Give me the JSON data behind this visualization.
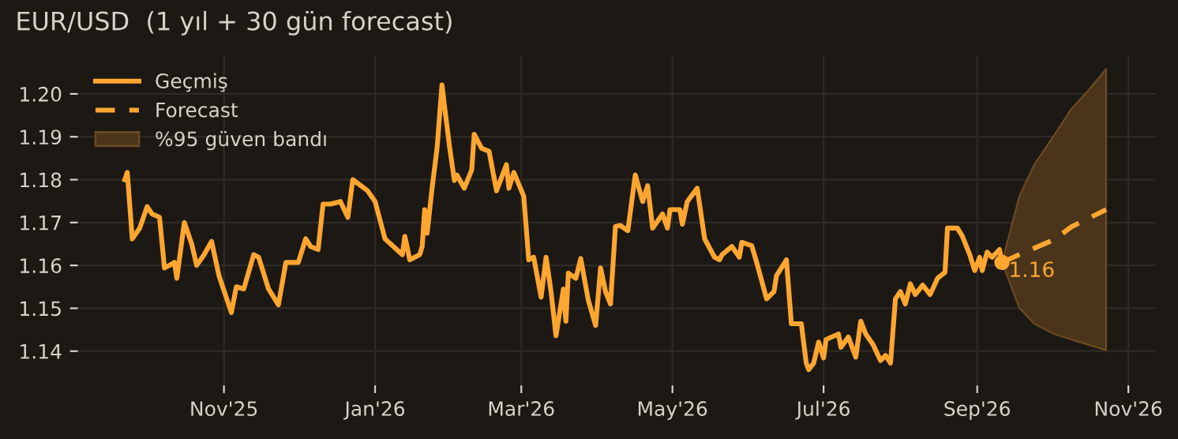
{
  "chart_data": {
    "type": "line",
    "title": "EUR/USD  (1 yıl + 30 gün forecast)",
    "series": [
      {
        "name": "Geçmiş",
        "color": "#ffa630",
        "line_style": "solid",
        "x": [
          "2025-09-22",
          "2025-09-23",
          "2025-09-25",
          "2025-09-28",
          "2025-10-01",
          "2025-10-03",
          "2025-10-06",
          "2025-10-08",
          "2025-10-10",
          "2025-10-12",
          "2025-10-13",
          "2025-10-16",
          "2025-10-19",
          "2025-10-21",
          "2025-10-24",
          "2025-10-27",
          "2025-10-30",
          "2025-11-04",
          "2025-11-06",
          "2025-11-09",
          "2025-11-13",
          "2025-11-15",
          "2025-11-19",
          "2025-11-23",
          "2025-11-26",
          "2025-12-01",
          "2025-12-04",
          "2025-12-06",
          "2025-12-09",
          "2025-12-11",
          "2025-12-14",
          "2025-12-18",
          "2025-12-21",
          "2025-12-23",
          "2025-12-29",
          "2026-01-01",
          "2026-01-05",
          "2026-01-12",
          "2026-01-13",
          "2026-01-15",
          "2026-01-19",
          "2026-01-20",
          "2026-01-21",
          "2026-01-22",
          "2026-01-24",
          "2026-01-26",
          "2026-01-28",
          "2026-01-29",
          "2026-01-31",
          "2026-02-02",
          "2026-02-03",
          "2026-02-06",
          "2026-02-09",
          "2026-02-10",
          "2026-02-13",
          "2026-02-16",
          "2026-02-19",
          "2026-02-23",
          "2026-02-24",
          "2026-02-26",
          "2026-03-02",
          "2026-03-04",
          "2026-03-06",
          "2026-03-09",
          "2026-03-11",
          "2026-03-13",
          "2026-03-15",
          "2026-03-18",
          "2026-03-19",
          "2026-03-20",
          "2026-03-23",
          "2026-03-25",
          "2026-03-28",
          "2026-03-31",
          "2026-04-02",
          "2026-04-04",
          "2026-04-06",
          "2026-04-08",
          "2026-04-10",
          "2026-04-13",
          "2026-04-16",
          "2026-04-19",
          "2026-04-21",
          "2026-04-23",
          "2026-04-27",
          "2026-04-29",
          "2026-04-30",
          "2026-05-04",
          "2026-05-05",
          "2026-05-07",
          "2026-05-11",
          "2026-05-14",
          "2026-05-18",
          "2026-05-20",
          "2026-05-21",
          "2026-05-25",
          "2026-05-28",
          "2026-05-29",
          "2026-06-02",
          "2026-06-04",
          "2026-06-08",
          "2026-06-11",
          "2026-06-12",
          "2026-06-16",
          "2026-06-18",
          "2026-06-22",
          "2026-06-24",
          "2026-06-25",
          "2026-06-27",
          "2026-06-29",
          "2026-07-01",
          "2026-07-02",
          "2026-07-07",
          "2026-07-08",
          "2026-07-11",
          "2026-07-14",
          "2026-07-16",
          "2026-07-18",
          "2026-07-21",
          "2026-07-24",
          "2026-07-26",
          "2026-07-28",
          "2026-07-30",
          "2026-08-01",
          "2026-08-03",
          "2026-08-05",
          "2026-08-07",
          "2026-08-10",
          "2026-08-13",
          "2026-08-16",
          "2026-08-19",
          "2026-08-20",
          "2026-08-24",
          "2026-08-26",
          "2026-08-29",
          "2026-08-31",
          "2026-09-02",
          "2026-09-03",
          "2026-09-05",
          "2026-09-07",
          "2026-09-10",
          "2026-09-11"
        ],
        "values": [
          1.18,
          1.1817,
          1.1662,
          1.1687,
          1.1737,
          1.172,
          1.1712,
          1.1594,
          1.16,
          1.1607,
          1.157,
          1.17,
          1.165,
          1.16,
          1.1625,
          1.1656,
          1.1576,
          1.149,
          1.155,
          1.1545,
          1.1625,
          1.1619,
          1.1545,
          1.1508,
          1.1607,
          1.1607,
          1.1662,
          1.1644,
          1.1637,
          1.1743,
          1.1743,
          1.1749,
          1.1712,
          1.18,
          1.1774,
          1.1749,
          1.1662,
          1.1625,
          1.1668,
          1.1613,
          1.1625,
          1.1644,
          1.173,
          1.1675,
          1.178,
          1.1873,
          1.2021,
          1.1972,
          1.1879,
          1.1798,
          1.1811,
          1.178,
          1.1823,
          1.1906,
          1.1873,
          1.1866,
          1.1774,
          1.1835,
          1.178,
          1.1817,
          1.1761,
          1.1613,
          1.1619,
          1.1526,
          1.1619,
          1.1539,
          1.1436,
          1.1545,
          1.147,
          1.1582,
          1.157,
          1.1616,
          1.152,
          1.146,
          1.1594,
          1.1539,
          1.151,
          1.1691,
          1.1693,
          1.1681,
          1.1811,
          1.1749,
          1.1786,
          1.1687,
          1.172,
          1.1687,
          1.173,
          1.173,
          1.1696,
          1.1749,
          1.178,
          1.1662,
          1.1619,
          1.1613,
          1.1625,
          1.1644,
          1.1619,
          1.1654,
          1.1646,
          1.1607,
          1.1522,
          1.1539,
          1.1576,
          1.1613,
          1.1464,
          1.1464,
          1.1372,
          1.1357,
          1.1372,
          1.1421,
          1.1384,
          1.1427,
          1.144,
          1.1409,
          1.1433,
          1.1386,
          1.147,
          1.144,
          1.1415,
          1.1378,
          1.139,
          1.1372,
          1.1522,
          1.1539,
          1.151,
          1.1557,
          1.1532,
          1.1554,
          1.1532,
          1.157,
          1.1584,
          1.1687,
          1.1687,
          1.1668,
          1.1625,
          1.1588,
          1.1619,
          1.1588,
          1.1631,
          1.1619,
          1.1637,
          1.1607
        ]
      },
      {
        "name": "Forecast",
        "color": "#ffa630",
        "line_style": "dashed",
        "x": [
          "2026-09-11",
          "2026-09-18",
          "2026-09-24",
          "2026-10-02",
          "2026-10-09",
          "2026-10-16",
          "2026-10-23"
        ],
        "values": [
          1.1607,
          1.1625,
          1.164,
          1.166,
          1.169,
          1.171,
          1.173
        ],
        "lower": [
          1.1607,
          1.1501,
          1.1464,
          1.144,
          1.1427,
          1.1415,
          1.1402
        ],
        "upper": [
          1.1607,
          1.1761,
          1.1835,
          1.1903,
          1.1965,
          1.2009,
          1.2058
        ]
      }
    ],
    "annotations": [
      {
        "text": "1.16",
        "x": "2026-09-11",
        "y": 1.1607
      },
      "%95 güven bandı"
    ],
    "xlim": [
      "2025-09-03",
      "2026-11-12"
    ],
    "xticks": [
      {
        "value": "2025-11-01",
        "label": "Nov'25"
      },
      {
        "value": "2026-01-01",
        "label": "Jan'26"
      },
      {
        "value": "2026-03-01",
        "label": "Mar'26"
      },
      {
        "value": "2026-05-01",
        "label": "May'26"
      },
      {
        "value": "2026-07-01",
        "label": "Jul'26"
      },
      {
        "value": "2026-09-01",
        "label": "Sep'26"
      },
      {
        "value": "2026-11-01",
        "label": "Nov'26"
      }
    ],
    "ylim": [
      1.132,
      1.209
    ],
    "yticks": [
      {
        "value": 1.14,
        "label": "1.14"
      },
      {
        "value": 1.15,
        "label": "1.15"
      },
      {
        "value": 1.16,
        "label": "1.16"
      },
      {
        "value": 1.17,
        "label": "1.17"
      },
      {
        "value": 1.18,
        "label": "1.18"
      },
      {
        "value": 1.19,
        "label": "1.19"
      },
      {
        "value": 1.2,
        "label": "1.20"
      }
    ],
    "grid": true,
    "legend": "top left"
  }
}
